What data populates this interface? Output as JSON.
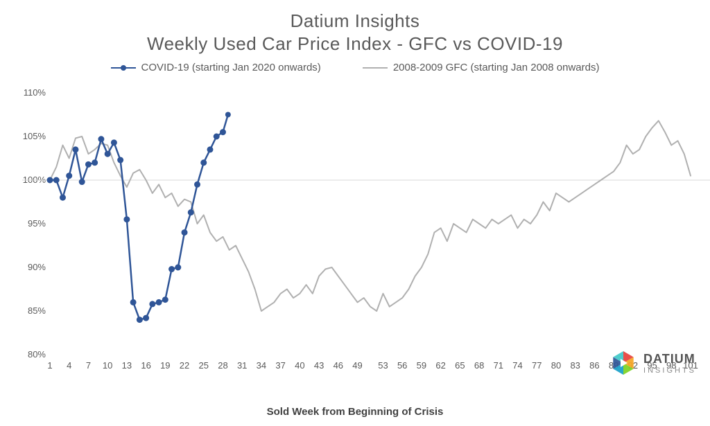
{
  "title": {
    "line1": "Datium Insights",
    "line2": "Weekly Used Car Price Index - GFC vs COVID-19",
    "fontsize": 26,
    "color": "#595959"
  },
  "legend": {
    "items": [
      {
        "label": "COVID-19 (starting Jan 2020 onwards)",
        "color": "#2f5597",
        "marker": "circle",
        "linewidth": 2.5
      },
      {
        "label": "2008-2009 GFC (starting Jan 2008 onwards)",
        "color": "#b0b0b0",
        "marker": "none",
        "linewidth": 2
      }
    ],
    "fontsize": 15
  },
  "chart": {
    "type": "line",
    "background_color": "#ffffff",
    "xlabel": "Sold Week from Beginning of Crisis",
    "xlabel_fontsize": 15,
    "xlabel_weight": "bold",
    "xlim": [
      1,
      101
    ],
    "ylim": [
      80,
      110
    ],
    "ytick_step": 5,
    "ytick_format": "percent",
    "xticks": [
      1,
      4,
      7,
      10,
      13,
      16,
      19,
      22,
      25,
      28,
      31,
      34,
      37,
      40,
      43,
      46,
      49,
      53,
      56,
      59,
      62,
      65,
      68,
      71,
      74,
      77,
      80,
      83,
      86,
      89,
      92,
      95,
      98,
      101
    ],
    "reference_line": {
      "y": 100,
      "color": "#d9d9d9",
      "width": 1
    },
    "series": [
      {
        "name": "COVID-19",
        "color": "#2f5597",
        "linewidth": 2.5,
        "marker": "circle",
        "marker_size": 4,
        "marker_fill": "#2f5597",
        "x": [
          1,
          2,
          3,
          4,
          5,
          6,
          7,
          8,
          9,
          10,
          11,
          12,
          13,
          14,
          15,
          16,
          17,
          18,
          19,
          20,
          21,
          22,
          23,
          24,
          25,
          26,
          27,
          28
        ],
        "y": [
          100,
          100,
          98,
          100.5,
          103.5,
          99.8,
          101.8,
          102,
          104.7,
          103,
          104.3,
          102.3,
          95.5,
          86,
          84,
          84.2,
          85.8,
          86,
          86.3,
          89.8,
          90,
          94,
          96.3,
          99.5,
          102,
          103.5,
          105,
          105.5
        ]
      },
      {
        "name": "GFC",
        "color": "#b0b0b0",
        "linewidth": 2,
        "marker": "none",
        "x": [
          1,
          2,
          3,
          4,
          5,
          6,
          7,
          8,
          9,
          10,
          11,
          12,
          13,
          14,
          15,
          16,
          17,
          18,
          19,
          20,
          21,
          22,
          23,
          24,
          25,
          26,
          27,
          28,
          29,
          30,
          31,
          32,
          33,
          34,
          35,
          36,
          37,
          38,
          39,
          40,
          41,
          42,
          43,
          44,
          45,
          46,
          47,
          48,
          49,
          50,
          51,
          52,
          53,
          54,
          55,
          56,
          57,
          58,
          59,
          60,
          61,
          62,
          63,
          64,
          65,
          66,
          67,
          68,
          69,
          70,
          71,
          72,
          73,
          74,
          75,
          76,
          77,
          78,
          79,
          80,
          81,
          82,
          83,
          84,
          85,
          86,
          87,
          88,
          89,
          90,
          91,
          92,
          93,
          94,
          95,
          96,
          97,
          98,
          99,
          100,
          101
        ],
        "y": [
          100,
          101.5,
          104,
          102.5,
          104.8,
          105,
          103,
          103.5,
          104.2,
          104,
          102,
          100.5,
          99.2,
          100.8,
          101.2,
          100,
          98.5,
          99.5,
          98,
          98.5,
          97,
          97.8,
          97.5,
          95,
          96,
          94,
          93,
          93.5,
          92,
          92.5,
          91,
          89.5,
          87.5,
          85,
          85.5,
          86,
          87,
          87.5,
          86.5,
          87,
          88,
          87,
          89,
          89.8,
          90,
          89,
          88,
          87,
          86,
          86.5,
          85.5,
          85,
          87,
          85.5,
          86,
          86.5,
          87.5,
          89,
          90,
          91.5,
          94,
          94.5,
          93,
          95,
          94.5,
          94,
          95.5,
          95,
          94.5,
          95.5,
          95,
          95.5,
          96,
          94.5,
          95.5,
          95,
          96,
          97.5,
          96.5,
          98.5,
          98,
          97.5,
          98,
          98.5,
          99,
          99.5,
          100,
          100.5,
          101,
          102,
          104,
          103,
          103.5,
          105,
          106,
          106.8,
          105.5,
          104,
          104.5,
          103,
          100.5
        ]
      }
    ]
  },
  "logo": {
    "brand": "DATIUM",
    "sub": "INSIGHTS",
    "colors": [
      "#e8413c",
      "#f5a623",
      "#7ed321",
      "#18a0c9",
      "#2f5597",
      "#40c9c9"
    ]
  }
}
